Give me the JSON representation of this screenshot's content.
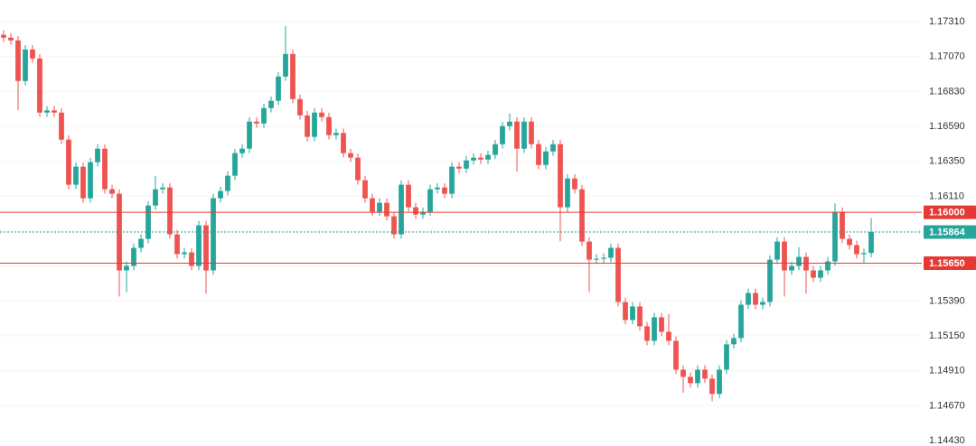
{
  "chart_data": {
    "type": "candlestick",
    "up_color": "#26a69a",
    "down_color": "#ef5350",
    "grid": true,
    "ylim": [
      1.14393,
      1.17459
    ],
    "yticks": [
      {
        "value": 1.1731,
        "label": "1.17310"
      },
      {
        "value": 1.1707,
        "label": "1.17070"
      },
      {
        "value": 1.1683,
        "label": "1.16830"
      },
      {
        "value": 1.1659,
        "label": "1.16590"
      },
      {
        "value": 1.1635,
        "label": "1.16350"
      },
      {
        "value": 1.1611,
        "label": "1.16110"
      },
      {
        "value": 1.1587,
        "label": "1.15870"
      },
      {
        "value": 1.1563,
        "label": "1.15630"
      },
      {
        "value": 1.1539,
        "label": "1.15390"
      },
      {
        "value": 1.1515,
        "label": "1.15150"
      },
      {
        "value": 1.1491,
        "label": "1.14910"
      },
      {
        "value": 1.1467,
        "label": "1.14670"
      },
      {
        "value": 1.1443,
        "label": "1.14430"
      }
    ],
    "price_lines": [
      {
        "value": 1.16,
        "label": "1.16000",
        "color": "#e53935",
        "style": "solid"
      },
      {
        "value": 1.15864,
        "label": "1.15864",
        "color": "#26a69a",
        "style": "dashed"
      },
      {
        "value": 1.1565,
        "label": "1.15650",
        "color": "#e53935",
        "style": "solid"
      }
    ],
    "open": [
      1.1722,
      1.172,
      1.17181,
      1.16902,
      1.17119,
      1.17057,
      1.16685,
      1.167,
      1.16685,
      1.16499,
      1.16189,
      1.16313,
      1.16096,
      1.16344,
      1.16437,
      1.16158,
      1.16127,
      1.156,
      1.15631,
      1.15755,
      1.15817,
      1.16046,
      1.16158,
      1.1617,
      1.15848,
      1.15712,
      1.15724,
      1.15631,
      1.1591,
      1.156,
      1.16096,
      1.16146,
      1.16251,
      1.16406,
      1.16437,
      1.16623,
      1.1661,
      1.16716,
      1.16766,
      1.16933,
      1.17088,
      1.16778,
      1.16666,
      1.16518,
      1.16685,
      1.16654,
      1.1653,
      1.16545,
      1.16406,
      1.16375,
      1.1622,
      1.16096,
      1.16003,
      1.16065,
      1.15972,
      1.15848,
      1.16189,
      1.16034,
      1.15984,
      1.16003,
      1.16158,
      1.1617,
      1.16127,
      1.16313,
      1.163,
      1.16356,
      1.16375,
      1.16362,
      1.16394,
      1.16468,
      1.16592,
      1.16623,
      1.16437,
      1.16623,
      1.16468,
      1.16325,
      1.16418,
      1.16468,
      1.16034,
      1.16232,
      1.16158,
      1.15798,
      1.15674,
      1.1568,
      1.15687,
      1.15755,
      1.15383,
      1.15259,
      1.15352,
      1.15216,
      1.15116,
      1.15278,
      1.15178,
      1.15116,
      1.14918,
      1.14868,
      1.14825,
      1.14918,
      1.14856,
      1.14751,
      1.14918,
      1.15092,
      1.15135,
      1.15364,
      1.15445,
      1.15364,
      1.15383,
      1.15674,
      1.15798,
      1.156,
      1.15631,
      1.15693,
      1.156,
      1.1555,
      1.156,
      1.15662,
      1.16003,
      1.15817,
      1.15774,
      1.15712,
      1.1572
    ],
    "high": [
      1.1725,
      1.1723,
      1.17211,
      1.17149,
      1.17149,
      1.17087,
      1.1673,
      1.1673,
      1.16715,
      1.16529,
      1.16343,
      1.16343,
      1.16374,
      1.16467,
      1.16467,
      1.16188,
      1.16157,
      1.15661,
      1.15785,
      1.15847,
      1.16076,
      1.1625,
      1.162,
      1.162,
      1.15878,
      1.15754,
      1.15754,
      1.1594,
      1.1594,
      1.16126,
      1.16176,
      1.16281,
      1.16436,
      1.16467,
      1.16653,
      1.16653,
      1.16746,
      1.16796,
      1.16963,
      1.1728,
      1.17118,
      1.16808,
      1.16696,
      1.16715,
      1.16715,
      1.16684,
      1.16575,
      1.16575,
      1.16436,
      1.16405,
      1.1625,
      1.16126,
      1.16095,
      1.16095,
      1.16002,
      1.16219,
      1.16219,
      1.16064,
      1.16033,
      1.16188,
      1.162,
      1.162,
      1.16343,
      1.16343,
      1.16386,
      1.16405,
      1.16405,
      1.16424,
      1.16498,
      1.16622,
      1.1668,
      1.16653,
      1.16653,
      1.16653,
      1.16498,
      1.16448,
      1.16498,
      1.16498,
      1.16262,
      1.16262,
      1.16188,
      1.15828,
      1.1571,
      1.15717,
      1.15785,
      1.15785,
      1.15413,
      1.15382,
      1.15382,
      1.15246,
      1.15308,
      1.15308,
      1.153,
      1.15146,
      1.14948,
      1.14898,
      1.14948,
      1.14948,
      1.14886,
      1.14948,
      1.15122,
      1.15165,
      1.15394,
      1.15475,
      1.15475,
      1.15413,
      1.15704,
      1.15828,
      1.15828,
      1.15661,
      1.1576,
      1.15723,
      1.1563,
      1.1563,
      1.15692,
      1.1606,
      1.16033,
      1.15847,
      1.15804,
      1.1575,
      1.1596
    ],
    "low": [
      1.1717,
      1.17151,
      1.167,
      1.16872,
      1.17027,
      1.16655,
      1.16655,
      1.16655,
      1.16469,
      1.16159,
      1.16159,
      1.16066,
      1.16066,
      1.16314,
      1.16128,
      1.16097,
      1.1542,
      1.1545,
      1.15601,
      1.15725,
      1.15787,
      1.16016,
      1.16128,
      1.15818,
      1.15682,
      1.15682,
      1.15601,
      1.15601,
      1.1544,
      1.1557,
      1.16066,
      1.16116,
      1.16221,
      1.16376,
      1.16407,
      1.1658,
      1.1658,
      1.16686,
      1.16736,
      1.16903,
      1.16748,
      1.16636,
      1.16488,
      1.16488,
      1.16624,
      1.165,
      1.165,
      1.16376,
      1.16345,
      1.1619,
      1.16066,
      1.15973,
      1.15973,
      1.15942,
      1.15818,
      1.15818,
      1.16004,
      1.15954,
      1.15954,
      1.15973,
      1.16128,
      1.16097,
      1.16097,
      1.1627,
      1.1627,
      1.16326,
      1.16332,
      1.16332,
      1.16364,
      1.16438,
      1.16562,
      1.1628,
      1.16407,
      1.16438,
      1.16295,
      1.16295,
      1.16388,
      1.158,
      1.16004,
      1.16128,
      1.15768,
      1.1545,
      1.15644,
      1.1565,
      1.15657,
      1.15353,
      1.15229,
      1.15229,
      1.15186,
      1.15086,
      1.15086,
      1.15148,
      1.15086,
      1.14888,
      1.1476,
      1.14795,
      1.14795,
      1.14826,
      1.147,
      1.14721,
      1.14888,
      1.15062,
      1.15105,
      1.15334,
      1.15334,
      1.15334,
      1.15353,
      1.15644,
      1.1542,
      1.1557,
      1.15601,
      1.1544,
      1.1552,
      1.1552,
      1.1557,
      1.15632,
      1.15787,
      1.15744,
      1.15682,
      1.1565,
      1.1569
    ],
    "close": [
      1.172,
      1.17181,
      1.16902,
      1.17119,
      1.17057,
      1.16685,
      1.167,
      1.16685,
      1.16499,
      1.16189,
      1.16313,
      1.16096,
      1.16344,
      1.16437,
      1.16158,
      1.16127,
      1.156,
      1.15631,
      1.15755,
      1.15817,
      1.16046,
      1.16158,
      1.1617,
      1.15848,
      1.15712,
      1.15724,
      1.15631,
      1.1591,
      1.156,
      1.16096,
      1.16146,
      1.16251,
      1.16406,
      1.16437,
      1.16623,
      1.1661,
      1.16716,
      1.16766,
      1.16933,
      1.17088,
      1.16778,
      1.16666,
      1.16518,
      1.16685,
      1.16654,
      1.1653,
      1.16545,
      1.16406,
      1.16375,
      1.1622,
      1.16096,
      1.16003,
      1.16065,
      1.15972,
      1.15848,
      1.16189,
      1.16034,
      1.15984,
      1.16003,
      1.16158,
      1.1617,
      1.16127,
      1.16313,
      1.163,
      1.16356,
      1.16375,
      1.16362,
      1.16394,
      1.16468,
      1.16592,
      1.16623,
      1.16437,
      1.16623,
      1.16468,
      1.16325,
      1.16418,
      1.16468,
      1.16034,
      1.16232,
      1.16158,
      1.15798,
      1.15674,
      1.1568,
      1.15687,
      1.15755,
      1.15383,
      1.15259,
      1.15352,
      1.15216,
      1.15116,
      1.15278,
      1.15178,
      1.15116,
      1.14918,
      1.14868,
      1.14825,
      1.14918,
      1.14856,
      1.14751,
      1.14918,
      1.15092,
      1.15135,
      1.15364,
      1.15445,
      1.15364,
      1.15383,
      1.15674,
      1.15798,
      1.156,
      1.15631,
      1.15693,
      1.156,
      1.1555,
      1.156,
      1.15662,
      1.16003,
      1.15817,
      1.15774,
      1.15712,
      1.1572,
      1.15864
    ]
  }
}
